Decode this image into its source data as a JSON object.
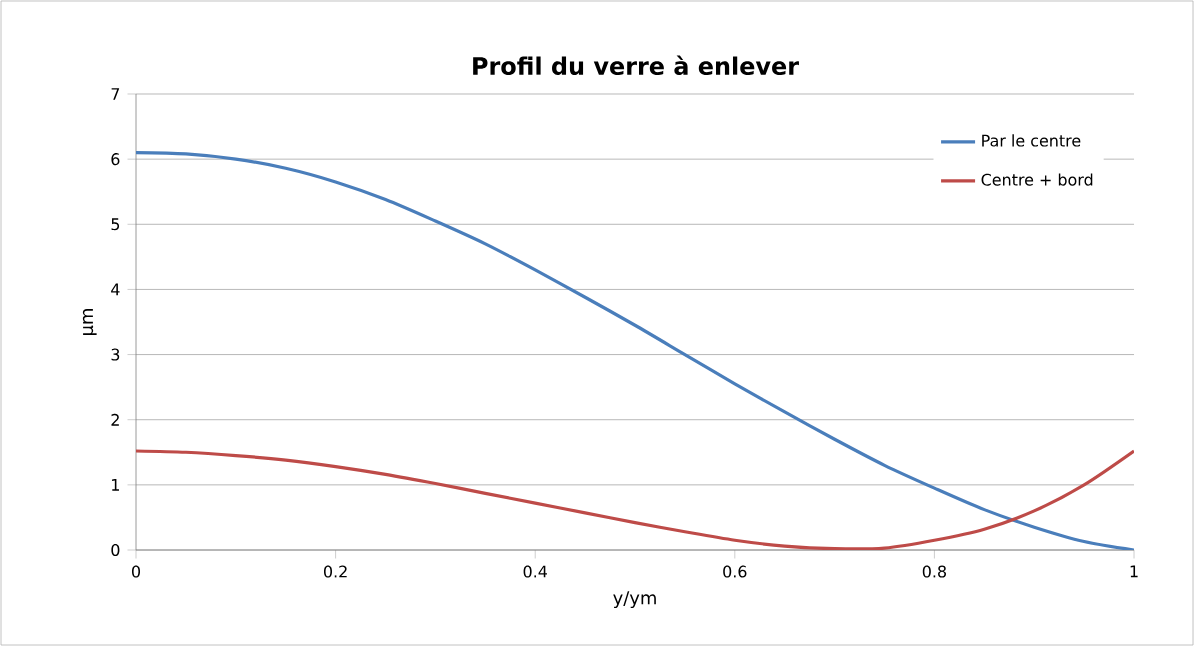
{
  "chart_data": {
    "type": "line",
    "title": "Profil du verre à enlever",
    "xlabel": "y/ym",
    "ylabel": "µm",
    "x": [
      0,
      0.05,
      0.1,
      0.15,
      0.2,
      0.25,
      0.3,
      0.35,
      0.4,
      0.45,
      0.5,
      0.55,
      0.6,
      0.65,
      0.7,
      0.75,
      0.8,
      0.85,
      0.9,
      0.95,
      1
    ],
    "series": [
      {
        "name": "Par le centre",
        "color": "#4a7ebb",
        "values": [
          6.1,
          6.08,
          6.0,
          5.86,
          5.65,
          5.38,
          5.05,
          4.7,
          4.3,
          3.88,
          3.45,
          3.0,
          2.55,
          2.12,
          1.7,
          1.3,
          0.95,
          0.62,
          0.35,
          0.13,
          0.0
        ]
      },
      {
        "name": "Centre + bord",
        "color": "#be4b48",
        "values": [
          1.52,
          1.5,
          1.45,
          1.38,
          1.28,
          1.16,
          1.02,
          0.87,
          0.72,
          0.57,
          0.42,
          0.28,
          0.15,
          0.06,
          0.02,
          0.03,
          0.15,
          0.32,
          0.6,
          1.0,
          1.52
        ]
      }
    ],
    "xlim": [
      0,
      1
    ],
    "ylim": [
      0,
      7
    ],
    "xticks": [
      0,
      0.2,
      0.4,
      0.6,
      0.8,
      1
    ],
    "yticks": [
      0,
      1,
      2,
      3,
      4,
      5,
      6,
      7
    ],
    "grid": "y",
    "legend": "top right",
    "marker": "none",
    "line_style": "solid"
  }
}
